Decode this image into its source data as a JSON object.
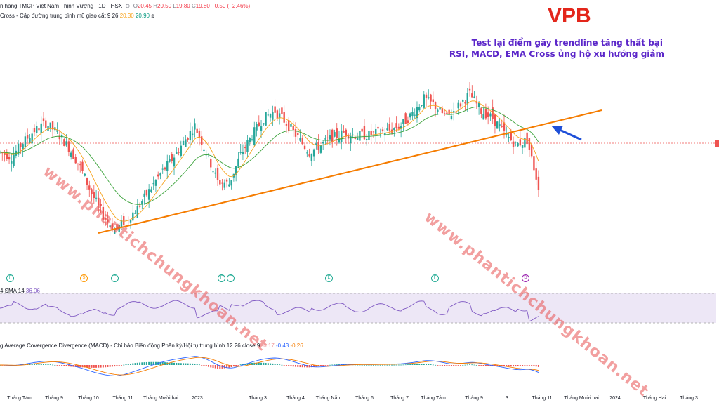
{
  "header": {
    "symbol_line": "n hàng TMCP Việt Nam Thịnh Vượng · 1D · HSX",
    "o_label": "O",
    "o_val": "20.45",
    "h_label": "H",
    "h_val": "20.50",
    "l_label": "L",
    "l_val": "19.80",
    "c_label": "C",
    "c_val": "19.80",
    "change": "−0.50 (−2.46%)",
    "indicator_line": "Cross - Cập đường trung bình mũ giao cắt 9 26",
    "ema_fast": "20.30",
    "ema_slow": "20.90",
    "eye_glyph": "ø"
  },
  "annotation": {
    "ticker": "VPB",
    "line1": "Test lại điểm gãy trendline tăng thất bại",
    "line2": "RSI, MACD, EMA Cross ủng hộ xu hướng giảm",
    "watermark": "www.phantichchungkhoan.net"
  },
  "rsi_panel": {
    "label": "4 SMA 14",
    "value": "36.06"
  },
  "macd_panel": {
    "label": "g Average Covergence Divergence (MACD) - Chỉ báo Biến động Phân kỳ/Hội tụ trung bình 12 26 close 9",
    "v1": "-0.17",
    "v2": "-0.43",
    "v3": "-0.26"
  },
  "badges": [
    {
      "letter": "F",
      "color": "#22ab94"
    },
    {
      "letter": "S",
      "color": "#ff9800"
    },
    {
      "letter": "F",
      "color": "#22ab94"
    },
    {
      "letter": "F",
      "color": "#22ab94"
    },
    {
      "letter": "F",
      "color": "#22ab94"
    },
    {
      "letter": "E",
      "color": "#22ab94"
    },
    {
      "letter": "F",
      "color": "#22ab94"
    },
    {
      "letter": "D",
      "color": "#9c27b0"
    }
  ],
  "x_axis": [
    "Tháng Tám",
    "Tháng 9",
    "Tháng 10",
    "Tháng 11",
    "Tháng Mười hai",
    "2023",
    "Tháng 3",
    "Tháng 4",
    "Tháng Năm",
    "Tháng 6",
    "Tháng 7",
    "Tháng Tám",
    "Tháng 9",
    "3",
    "Tháng 11",
    "Tháng Mười hai",
    "2024",
    "Tháng Hai",
    "Tháng 3"
  ],
  "colors": {
    "up": "#26a69a",
    "down": "#ef5350",
    "trendline": "#f57c00",
    "arrow": "#1e4fd8",
    "ema_fast": "#f7a21b",
    "ema_slow": "#3ca33c",
    "rsi": "#7e57c2"
  },
  "chart_data": {
    "type": "line",
    "title": "",
    "series": [
      {
        "name": "",
        "values": [
          21.2,
          21.0,
          21.6,
          22.1,
          22.4,
          22.0,
          21.4,
          20.6,
          19.5,
          18.6,
          18.0,
          18.4,
          18.9,
          19.6,
          20.3,
          20.9,
          21.6,
          22.3,
          21.2,
          20.0,
          19.9,
          21.1,
          21.9,
          22.6,
          22.9,
          22.4,
          21.8,
          21.2,
          21.5,
          21.8,
          22.0,
          21.9,
          21.9,
          22.0,
          22.1,
          22.3,
          22.8,
          23.4,
          23.1,
          22.6,
          23.1,
          23.6,
          22.9,
          22.6,
          22.0,
          21.5,
          21.7,
          19.8
        ]
      }
    ]
  }
}
